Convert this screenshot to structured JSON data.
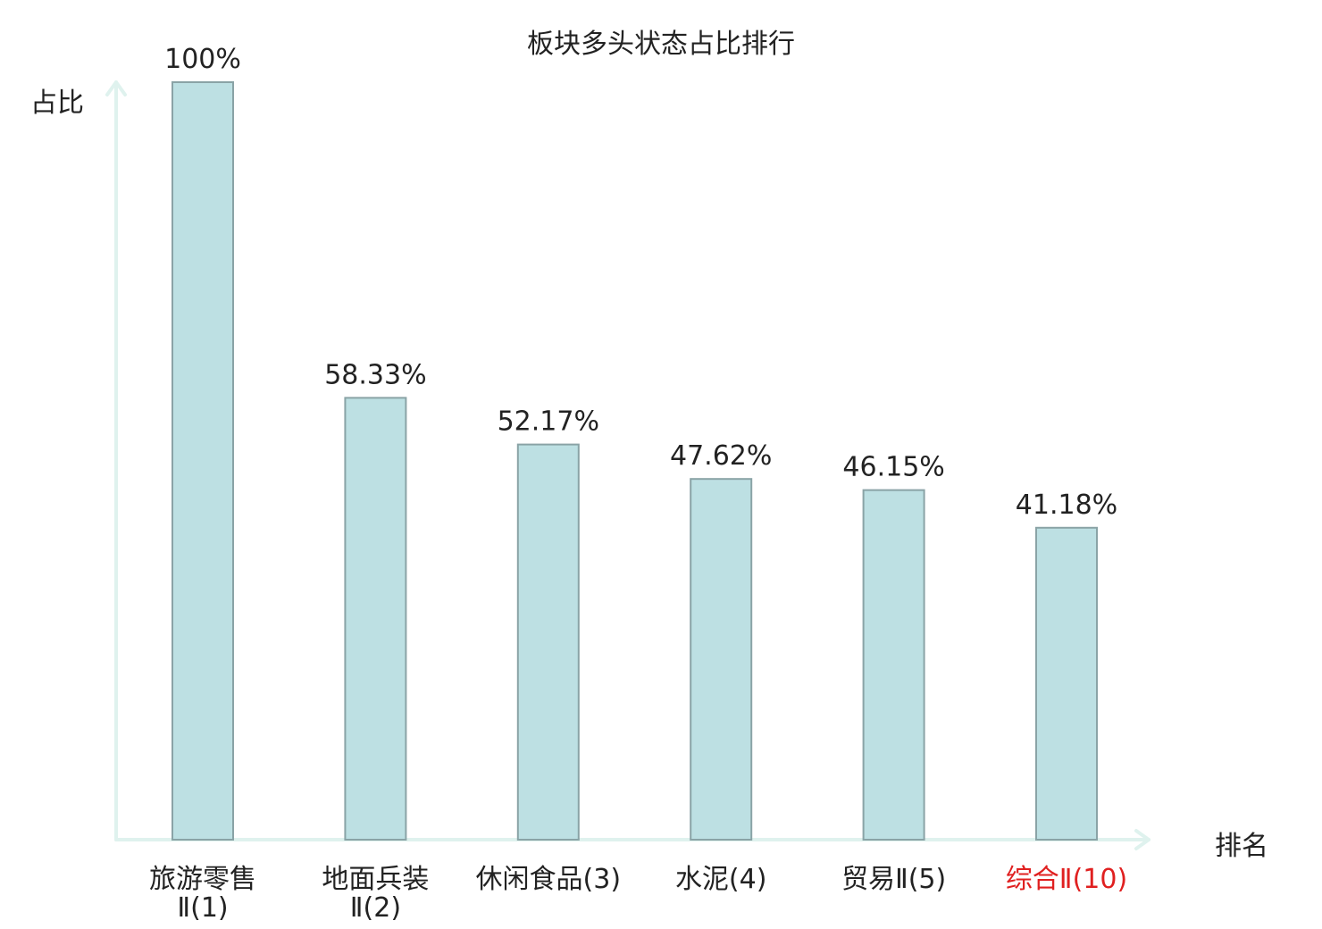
{
  "chart_data": {
    "type": "bar",
    "title": "板块多头状态占比排行",
    "ylabel": "占比",
    "xlabel": "排名",
    "ylim": [
      0,
      100
    ],
    "grid": false,
    "categories": [
      {
        "name": "旅游零售Ⅱ",
        "rank": "(1)",
        "lines": [
          "旅游零售",
          "Ⅱ(1)"
        ],
        "highlight": false
      },
      {
        "name": "地面兵装Ⅱ",
        "rank": "(2)",
        "lines": [
          "地面兵装",
          "Ⅱ(2)"
        ],
        "highlight": false
      },
      {
        "name": "休闲食品",
        "rank": "(3)",
        "lines": [
          "休闲食品(3)"
        ],
        "highlight": false
      },
      {
        "name": "水泥",
        "rank": "(4)",
        "lines": [
          "水泥(4)"
        ],
        "highlight": false
      },
      {
        "name": "贸易Ⅱ",
        "rank": "(5)",
        "lines": [
          "贸易Ⅱ(5)"
        ],
        "highlight": false
      },
      {
        "name": "综合Ⅱ",
        "rank": "(10)",
        "lines": [
          "综合Ⅱ(10)"
        ],
        "highlight": true
      }
    ],
    "values": [
      100,
      58.33,
      52.17,
      47.62,
      46.15,
      41.18
    ],
    "data_labels": [
      "100%",
      "58.33%",
      "52.17%",
      "47.62%",
      "46.15%",
      "41.18%"
    ]
  },
  "colors": {
    "bar_fill": "#bde0e3",
    "bar_stroke": "#8aa3a6",
    "axis": "#dff2ee",
    "text": "#222222",
    "highlight_text": "#e02020"
  }
}
